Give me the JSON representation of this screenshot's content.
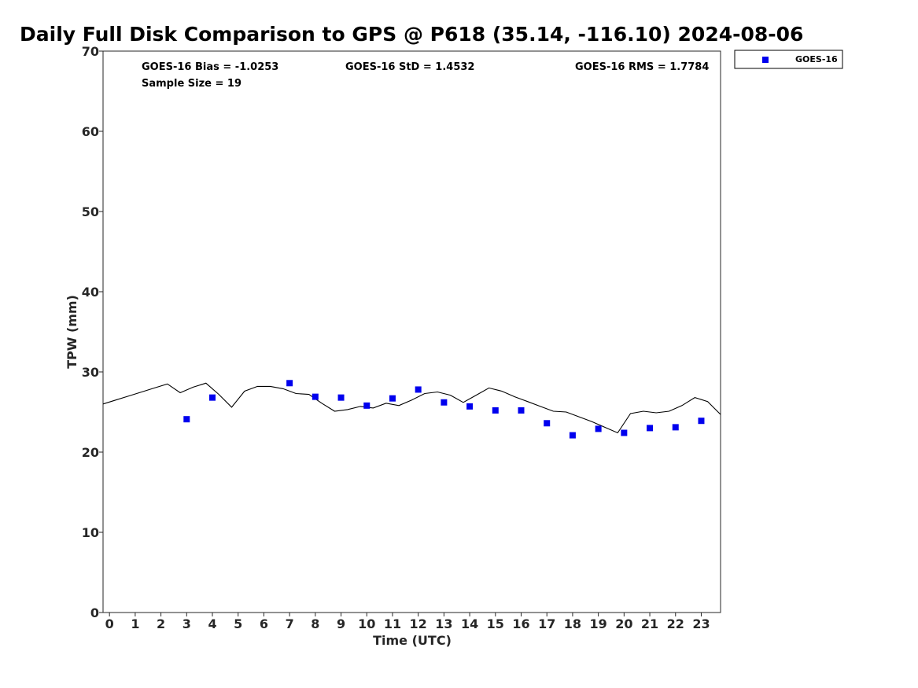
{
  "title": "Daily Full Disk Comparison to GPS @ P618 (35.14, -116.10) 2024-08-06",
  "stats": {
    "bias": "GOES-16 Bias = -1.0253",
    "std": "GOES-16 StD = 1.4532",
    "rms": "GOES-16 RMS = 1.7784",
    "sample": "Sample Size = 19"
  },
  "colors": {
    "goes": "#0000ee",
    "gps_line": "#000000",
    "axis": "#262626"
  },
  "chart_data": {
    "type": "scatter",
    "xlabel": "Time (UTC)",
    "ylabel": "TPW (mm)",
    "xlim": [
      -0.25,
      23.75
    ],
    "ylim": [
      0,
      70
    ],
    "x_ticks": [
      0,
      1,
      2,
      3,
      4,
      5,
      6,
      7,
      8,
      9,
      10,
      11,
      12,
      13,
      14,
      15,
      16,
      17,
      18,
      19,
      20,
      21,
      22,
      23
    ],
    "y_ticks": [
      0,
      10,
      20,
      30,
      40,
      50,
      60,
      70
    ],
    "grid": false,
    "legend_position": "top-right",
    "series": [
      {
        "name": "GOES-16",
        "marker": "square",
        "x": [
          3,
          4,
          7,
          8,
          9,
          10,
          11,
          12,
          13,
          14,
          15,
          16,
          17,
          18,
          19,
          20,
          21,
          22,
          23
        ],
        "y": [
          24.1,
          26.8,
          28.6,
          26.9,
          26.8,
          25.8,
          26.7,
          27.8,
          26.2,
          25.7,
          25.2,
          25.2,
          23.6,
          22.1,
          22.9,
          22.4,
          23.0,
          23.1,
          23.9
        ]
      },
      {
        "marker": "line",
        "x": [
          -0.25,
          0.25,
          0.75,
          1.25,
          1.75,
          2.25,
          2.75,
          3.25,
          3.75,
          4.25,
          4.75,
          5.25,
          5.75,
          6.25,
          6.75,
          7.25,
          7.75,
          8.25,
          8.75,
          9.25,
          9.75,
          10.25,
          10.75,
          11.25,
          11.75,
          12.25,
          12.75,
          13.25,
          13.75,
          14.25,
          14.75,
          15.25,
          15.75,
          16.25,
          16.75,
          17.25,
          17.75,
          18.25,
          18.75,
          19.25,
          19.75,
          20.25,
          20.75,
          21.25,
          21.75,
          22.25,
          22.75,
          23.25,
          23.75
        ],
        "y": [
          26.0,
          26.5,
          27.0,
          27.5,
          28.0,
          28.5,
          27.4,
          28.1,
          28.6,
          27.2,
          25.6,
          27.6,
          28.2,
          28.2,
          27.9,
          27.3,
          27.2,
          26.1,
          25.1,
          25.3,
          25.7,
          25.5,
          26.1,
          25.8,
          26.5,
          27.3,
          27.5,
          27.1,
          26.2,
          27.1,
          28.0,
          27.6,
          26.9,
          26.3,
          25.7,
          25.1,
          25.0,
          24.4,
          23.8,
          23.1,
          22.4,
          24.8,
          25.1,
          24.9,
          25.1,
          25.8,
          26.8,
          26.3,
          24.7
        ]
      }
    ]
  }
}
